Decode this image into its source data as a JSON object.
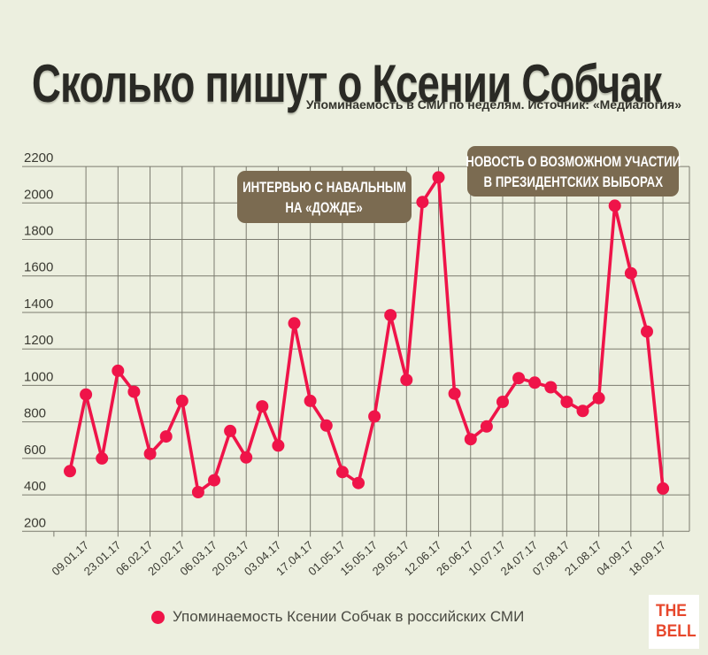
{
  "header": {
    "title": "Сколько пишут о Ксении Собчак",
    "subtitle": "Упоминаемость в СМИ по неделям. Источник: «Медиалогия»"
  },
  "annotations": [
    {
      "name": "interview",
      "line1": "ИНТЕРВЬЮ С НАВАЛЬНЫМ",
      "line2": "НА «ДОЖДЕ»"
    },
    {
      "name": "election",
      "line1": "НОВОСТЬ О ВОЗМОЖНОМ УЧАСТИИ",
      "line2": "В ПРЕЗИДЕНТСКИХ ВЫБОРАХ"
    }
  ],
  "legend": {
    "label": "Упоминаемость Ксении Собчак в российских СМИ"
  },
  "logo": {
    "line1": "THE",
    "line2": "BELL"
  },
  "colors": {
    "background": "#ecefdf",
    "line": "#ef1449",
    "grid": "#7b7b6f",
    "axis_text": "#3b3b33",
    "title_text": "#2a2a25",
    "annotation_box": "#7b6b51",
    "annotation_text": "#ffffff",
    "legend_text": "#4a4a42",
    "logo_red": "#e7472c",
    "logo_bg": "#ffffff"
  },
  "chart_data": {
    "type": "line",
    "title": "Сколько пишут о Ксении Собчак",
    "series_name": "Упоминаемость Ксении Собчак в российских СМИ",
    "source": "Медиалогия",
    "grid": true,
    "legend_position": "bottom",
    "ylim": [
      200,
      2200
    ],
    "y_ticks": [
      200,
      400,
      600,
      800,
      1000,
      1200,
      1400,
      1600,
      1800,
      2000,
      2200
    ],
    "x": [
      "02.01.17",
      "09.01.17",
      "16.01.17",
      "23.01.17",
      "30.01.17",
      "06.02.17",
      "13.02.17",
      "20.02.17",
      "27.02.17",
      "06.03.17",
      "13.03.17",
      "20.03.17",
      "27.03.17",
      "03.04.17",
      "10.04.17",
      "17.04.17",
      "24.04.17",
      "01.05.17",
      "08.05.17",
      "15.05.17",
      "22.05.17",
      "29.05.17",
      "05.06.17",
      "12.06.17",
      "19.06.17",
      "26.06.17",
      "03.07.17",
      "10.07.17",
      "17.07.17",
      "24.07.17",
      "31.07.17",
      "07.08.17",
      "14.08.17",
      "21.08.17",
      "28.08.17",
      "04.09.17",
      "11.09.17",
      "18.09.17"
    ],
    "values": [
      530,
      950,
      600,
      1080,
      965,
      625,
      720,
      915,
      415,
      480,
      750,
      605,
      885,
      670,
      1340,
      915,
      780,
      525,
      465,
      830,
      1385,
      1030,
      2005,
      2140,
      955,
      705,
      775,
      910,
      1040,
      1015,
      990,
      910,
      860,
      930,
      1985,
      1615,
      1295,
      435
    ],
    "x_tick_labels": [
      "09.01.17",
      "23.01.17",
      "06.02.17",
      "20.02.17",
      "06.03.17",
      "20.03.17",
      "03.04.17",
      "17.04.17",
      "01.05.17",
      "15.05.17",
      "29.05.17",
      "12.06.17",
      "26.06.17",
      "10.07.17",
      "24.07.17",
      "07.08.17",
      "21.08.17",
      "04.09.17",
      "18.09.17"
    ]
  }
}
